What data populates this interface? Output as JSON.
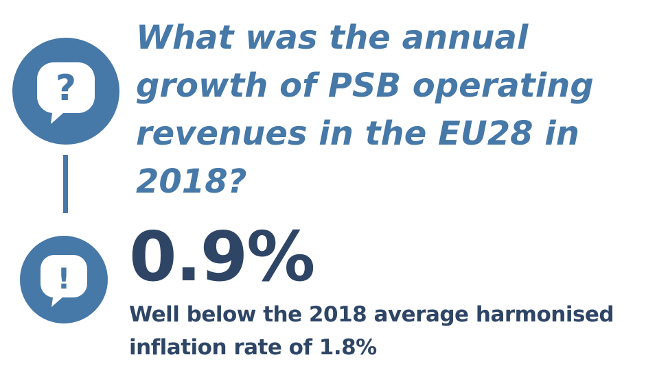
{
  "question": {
    "text": "What was the annual growth of PSB operating revenues in the EU28 in 2018?"
  },
  "answer": {
    "value": "0.9%",
    "note": "Well below the 2018 average harmonised inflation rate of 1.8%"
  },
  "icons": {
    "question": "question-bubble-icon",
    "answer": "exclamation-bubble-icon"
  },
  "colors": {
    "accent": "#4678a8",
    "text_dark": "#2e4566",
    "background": "#ffffff"
  }
}
